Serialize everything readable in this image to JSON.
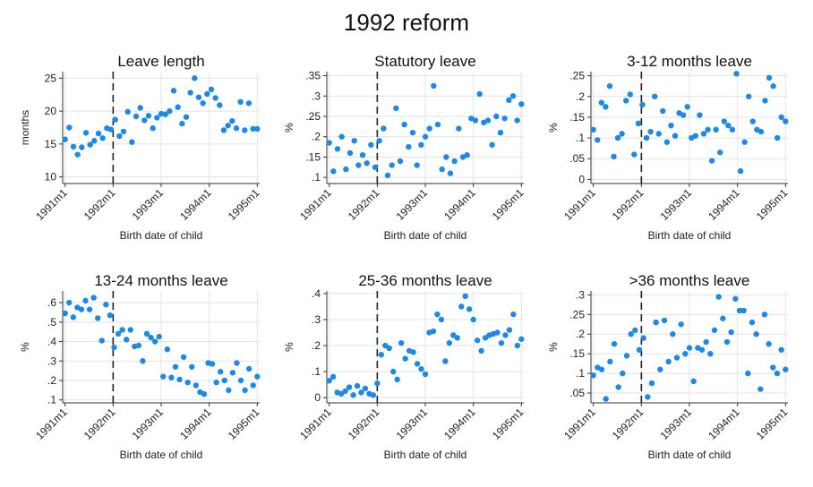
{
  "title": "1992 reform",
  "colors": {
    "points": "#1e88e5",
    "reference_line": "#222222",
    "grid": "#e3e3e3"
  },
  "chart_data": [
    {
      "type": "scatter",
      "title": "Leave length",
      "xlabel": "Birth date of child",
      "ylabel": "months",
      "xlim": [
        1990.95,
        1995.05
      ],
      "ylim": [
        9,
        26
      ],
      "yticks": [
        10,
        15,
        20,
        25
      ],
      "yticklabels": [
        "10",
        "15",
        "20",
        "25"
      ],
      "xticks": [
        1991,
        1992,
        1993,
        1994,
        1995
      ],
      "xticklabels": [
        "1991m1",
        "1992m1",
        "1993m1",
        "1994m1",
        "1995m1"
      ],
      "reference_x": 1992.0,
      "grid": true,
      "y": [
        15.7,
        17.5,
        14.6,
        13.4,
        14.5,
        16.7,
        14.9,
        15.5,
        16.6,
        15.9,
        17.4,
        17.2,
        18.7,
        16.2,
        16.9,
        19.9,
        15.3,
        19.2,
        20.5,
        18.6,
        19.3,
        17.4,
        19.0,
        19.6,
        19.5,
        20.0,
        23.1,
        20.6,
        18.1,
        19.1,
        22.8,
        25.0,
        22.1,
        21.2,
        22.6,
        23.3,
        22.0,
        20.9,
        17.1,
        17.8,
        18.5,
        17.4,
        21.4,
        17.1,
        21.2,
        17.3,
        17.3
      ]
    },
    {
      "type": "scatter",
      "title": "Statutory leave",
      "xlabel": "Birth date of child",
      "ylabel": "%",
      "xlim": [
        1990.95,
        1995.05
      ],
      "ylim": [
        0.085,
        0.36
      ],
      "yticks": [
        0.1,
        0.15,
        0.2,
        0.25,
        0.3,
        0.35
      ],
      "yticklabels": [
        ".1",
        ".15",
        ".2",
        ".25",
        ".3",
        ".35"
      ],
      "xticks": [
        1991,
        1992,
        1993,
        1994,
        1995
      ],
      "xticklabels": [
        "1991m1",
        "1992m1",
        "1993m1",
        "1994m1",
        "1995m1"
      ],
      "reference_x": 1992.0,
      "grid": true,
      "y": [
        0.185,
        0.115,
        0.17,
        0.2,
        0.12,
        0.16,
        0.19,
        0.13,
        0.155,
        0.135,
        0.18,
        0.125,
        0.19,
        0.22,
        0.105,
        0.13,
        0.27,
        0.14,
        0.23,
        0.175,
        0.21,
        0.13,
        0.18,
        0.2,
        0.22,
        0.325,
        0.23,
        0.12,
        0.15,
        0.11,
        0.14,
        0.22,
        0.15,
        0.155,
        0.245,
        0.24,
        0.305,
        0.235,
        0.24,
        0.18,
        0.25,
        0.21,
        0.245,
        0.29,
        0.3,
        0.24,
        0.28
      ]
    },
    {
      "type": "scatter",
      "title": "3-12 months leave",
      "xlabel": "Birth date of child",
      "ylabel": "%",
      "xlim": [
        1990.95,
        1995.05
      ],
      "ylim": [
        -0.01,
        0.26
      ],
      "yticks": [
        0,
        0.05,
        0.1,
        0.15,
        0.2,
        0.25
      ],
      "yticklabels": [
        "0",
        ".05",
        ".1",
        ".15",
        ".2",
        ".25"
      ],
      "xticks": [
        1991,
        1992,
        1993,
        1994,
        1995
      ],
      "xticklabels": [
        "1991m1",
        "1992m1",
        "1993m1",
        "1994m1",
        "1995m1"
      ],
      "reference_x": 1992.0,
      "grid": true,
      "y": [
        0.12,
        0.095,
        0.185,
        0.175,
        0.225,
        0.055,
        0.1,
        0.11,
        0.19,
        0.205,
        0.06,
        0.135,
        0.18,
        0.1,
        0.115,
        0.2,
        0.11,
        0.165,
        0.09,
        0.13,
        0.105,
        0.16,
        0.155,
        0.175,
        0.1,
        0.105,
        0.155,
        0.11,
        0.12,
        0.045,
        0.12,
        0.065,
        0.14,
        0.13,
        0.12,
        0.255,
        0.02,
        0.09,
        0.2,
        0.14,
        0.12,
        0.115,
        0.19,
        0.245,
        0.225,
        0.1,
        0.15,
        0.14
      ]
    },
    {
      "type": "scatter",
      "title": "13-24 months leave",
      "xlabel": "Birth date of child",
      "ylabel": "%",
      "xlim": [
        1990.95,
        1995.05
      ],
      "ylim": [
        0.085,
        0.66
      ],
      "yticks": [
        0.1,
        0.2,
        0.3,
        0.4,
        0.5,
        0.6
      ],
      "yticklabels": [
        ".1",
        ".2",
        ".3",
        ".4",
        ".5",
        ".6"
      ],
      "xticks": [
        1991,
        1992,
        1993,
        1994,
        1995
      ],
      "xticklabels": [
        "1991m1",
        "1992m1",
        "1993m1",
        "1994m1",
        "1995m1"
      ],
      "reference_x": 1992.0,
      "grid": true,
      "y": [
        0.545,
        0.6,
        0.525,
        0.575,
        0.565,
        0.61,
        0.565,
        0.625,
        0.52,
        0.405,
        0.59,
        0.535,
        0.37,
        0.44,
        0.46,
        0.41,
        0.46,
        0.375,
        0.38,
        0.3,
        0.44,
        0.42,
        0.4,
        0.425,
        0.22,
        0.36,
        0.215,
        0.27,
        0.205,
        0.32,
        0.19,
        0.27,
        0.175,
        0.14,
        0.13,
        0.29,
        0.285,
        0.19,
        0.245,
        0.2,
        0.15,
        0.24,
        0.29,
        0.2,
        0.15,
        0.26,
        0.175,
        0.22
      ]
    },
    {
      "type": "scatter",
      "title": "25-36 months leave",
      "xlabel": "Birth date of child",
      "ylabel": "%",
      "xlim": [
        1990.95,
        1995.05
      ],
      "ylim": [
        -0.02,
        0.41
      ],
      "yticks": [
        0,
        0.1,
        0.2,
        0.3,
        0.4
      ],
      "yticklabels": [
        "0",
        ".1",
        ".2",
        ".3",
        ".4"
      ],
      "xticks": [
        1991,
        1992,
        1993,
        1994,
        1995
      ],
      "xticklabels": [
        "1991m1",
        "1992m1",
        "1993m1",
        "1994m1",
        "1995m1"
      ],
      "reference_x": 1992.0,
      "grid": true,
      "y": [
        0.065,
        0.08,
        0.02,
        0.015,
        0.025,
        0.04,
        0.01,
        0.045,
        0.02,
        0.035,
        0.015,
        0.01,
        0.055,
        0.165,
        0.2,
        0.19,
        0.1,
        0.07,
        0.21,
        0.15,
        0.18,
        0.175,
        0.13,
        0.11,
        0.09,
        0.25,
        0.255,
        0.32,
        0.3,
        0.14,
        0.21,
        0.24,
        0.23,
        0.35,
        0.39,
        0.34,
        0.3,
        0.22,
        0.18,
        0.23,
        0.24,
        0.245,
        0.25,
        0.21,
        0.24,
        0.26,
        0.32,
        0.2,
        0.225
      ]
    },
    {
      "type": "scatter",
      "title": ">36 months leave",
      "xlabel": "Birth date of child",
      "ylabel": "%",
      "xlim": [
        1990.95,
        1995.05
      ],
      "ylim": [
        0.025,
        0.31
      ],
      "yticks": [
        0.05,
        0.1,
        0.15,
        0.2,
        0.25,
        0.3
      ],
      "yticklabels": [
        ".05",
        ".1",
        ".15",
        ".2",
        ".25",
        ".3"
      ],
      "xticks": [
        1991,
        1992,
        1993,
        1994,
        1995
      ],
      "xticklabels": [
        "1991m1",
        "1992m1",
        "1993m1",
        "1994m1",
        "1995m1"
      ],
      "reference_x": 1992.0,
      "grid": true,
      "y": [
        0.095,
        0.115,
        0.11,
        0.035,
        0.13,
        0.175,
        0.065,
        0.1,
        0.145,
        0.2,
        0.21,
        0.16,
        0.19,
        0.04,
        0.075,
        0.23,
        0.11,
        0.235,
        0.13,
        0.2,
        0.14,
        0.225,
        0.15,
        0.165,
        0.08,
        0.165,
        0.16,
        0.18,
        0.15,
        0.21,
        0.295,
        0.24,
        0.18,
        0.205,
        0.29,
        0.26,
        0.26,
        0.1,
        0.23,
        0.2,
        0.06,
        0.25,
        0.175,
        0.115,
        0.1,
        0.16,
        0.11
      ]
    }
  ]
}
